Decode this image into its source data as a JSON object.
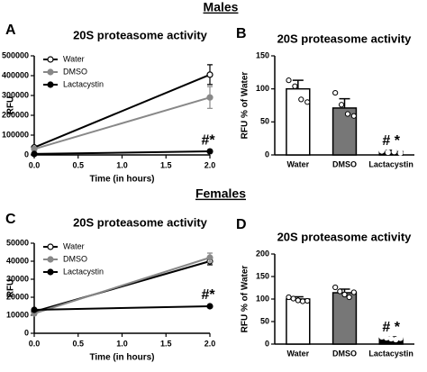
{
  "headings": [
    "Males",
    "Females"
  ],
  "chart_data": [
    {
      "type": "line",
      "panel_label": "A",
      "title": "20S proteasome activity",
      "ylabel": "RFU",
      "xlabel": "Time (in hours)",
      "x": [
        0,
        2
      ],
      "xlim": [
        0,
        2
      ],
      "xticks": [
        {
          "value": 0,
          "label": "0.0"
        },
        {
          "value": 0.5,
          "label": "0.5"
        },
        {
          "value": 1,
          "label": "1.0"
        },
        {
          "value": 1.5,
          "label": "1.5"
        },
        {
          "value": 2,
          "label": "2.0"
        }
      ],
      "ylim": [
        0,
        500000
      ],
      "yticks": [
        0,
        100000,
        200000,
        300000,
        400000,
        500000
      ],
      "series": [
        {
          "name": "Water",
          "color": "#000000",
          "fill": "#ffffff",
          "values": [
            38000,
            405000
          ],
          "errors": [
            4000,
            50000
          ]
        },
        {
          "name": "DMSO",
          "color": "#888888",
          "fill": "#888888",
          "values": [
            30000,
            290000
          ],
          "errors": [
            4000,
            55000
          ]
        },
        {
          "name": "Lactacystin",
          "color": "#000000",
          "fill": "#000000",
          "values": [
            5000,
            18000
          ],
          "errors": [
            1000,
            3000
          ]
        }
      ],
      "annotation": "#*"
    },
    {
      "type": "bar",
      "panel_label": "B",
      "title": "20S proteasome activity",
      "ylabel": "RFU % of Water",
      "categories": [
        "Water",
        "DMSO",
        "Lactacystin"
      ],
      "colors": [
        "#ffffff",
        "#777777",
        "#000000"
      ],
      "values": [
        100,
        71,
        5
      ],
      "errors": [
        13,
        14,
        2
      ],
      "points": [
        [
          113,
          104,
          84,
          80
        ],
        [
          94,
          76,
          62,
          59
        ],
        [
          6,
          4,
          5,
          3
        ]
      ],
      "ylim": [
        0,
        150
      ],
      "yticks": [
        0,
        50,
        100,
        150
      ],
      "annotation": "# *"
    },
    {
      "type": "line",
      "panel_label": "C",
      "title": "20S proteasome activity",
      "ylabel": "RFU",
      "xlabel": "Time (in hours)",
      "x": [
        0,
        2
      ],
      "xlim": [
        0,
        2
      ],
      "xticks": [
        {
          "value": 0,
          "label": "0.0"
        },
        {
          "value": 0.5,
          "label": "0.5"
        },
        {
          "value": 1,
          "label": "1.0"
        },
        {
          "value": 1.5,
          "label": "1.5"
        },
        {
          "value": 2,
          "label": "2.0"
        }
      ],
      "ylim": [
        0,
        50000
      ],
      "yticks": [
        0,
        10000,
        20000,
        30000,
        40000,
        50000
      ],
      "series": [
        {
          "name": "Water",
          "color": "#000000",
          "fill": "#ffffff",
          "values": [
            12000,
            40000
          ],
          "errors": [
            1000,
            2000
          ]
        },
        {
          "name": "DMSO",
          "color": "#888888",
          "fill": "#888888",
          "values": [
            11000,
            42000
          ],
          "errors": [
            1000,
            2500
          ]
        },
        {
          "name": "Lactacystin",
          "color": "#000000",
          "fill": "#000000",
          "values": [
            13000,
            15000
          ],
          "errors": [
            500,
            500
          ]
        }
      ],
      "annotation": "#*"
    },
    {
      "type": "bar",
      "panel_label": "D",
      "title": "20S proteasome activity",
      "ylabel": "RFU % of Water",
      "categories": [
        "Water",
        "DMSO",
        "Lactacystin"
      ],
      "colors": [
        "#ffffff",
        "#777777",
        "#000000"
      ],
      "values": [
        100,
        114,
        13
      ],
      "errors": [
        5,
        8,
        3
      ],
      "points": [
        [
          104,
          101,
          97,
          95,
          96
        ],
        [
          126,
          117,
          110,
          104,
          115
        ],
        [
          16,
          14,
          12,
          10,
          13
        ]
      ],
      "ylim": [
        0,
        200
      ],
      "yticks": [
        0,
        50,
        100,
        150,
        200
      ],
      "annotation": "# *"
    }
  ]
}
